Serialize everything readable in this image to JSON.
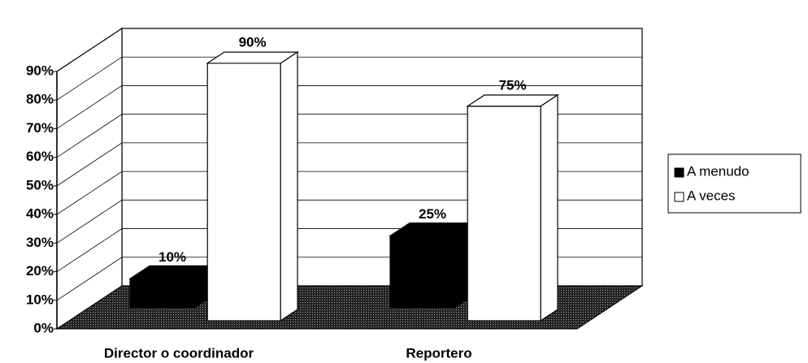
{
  "chart_data": {
    "type": "bar3d",
    "categories": [
      "Director o coordinador",
      "Reportero"
    ],
    "series": [
      {
        "name": "A menudo",
        "color": "#000000",
        "values": [
          10,
          25
        ],
        "value_labels": [
          "10%",
          "25%"
        ]
      },
      {
        "name": "A veces",
        "color": "#ffffff",
        "values": [
          90,
          75
        ],
        "value_labels": [
          "90%",
          "75%"
        ]
      }
    ],
    "ylim": [
      0,
      90
    ],
    "yticks": [
      {
        "value": 0,
        "label": "0%"
      },
      {
        "value": 10,
        "label": "10%"
      },
      {
        "value": 20,
        "label": "20%"
      },
      {
        "value": 30,
        "label": "30%"
      },
      {
        "value": 40,
        "label": "40%"
      },
      {
        "value": 50,
        "label": "50%"
      },
      {
        "value": 60,
        "label": "60%"
      },
      {
        "value": 70,
        "label": "70%"
      },
      {
        "value": 80,
        "label": "80%"
      },
      {
        "value": 90,
        "label": "90%"
      }
    ],
    "grid": true,
    "legend": "right"
  }
}
